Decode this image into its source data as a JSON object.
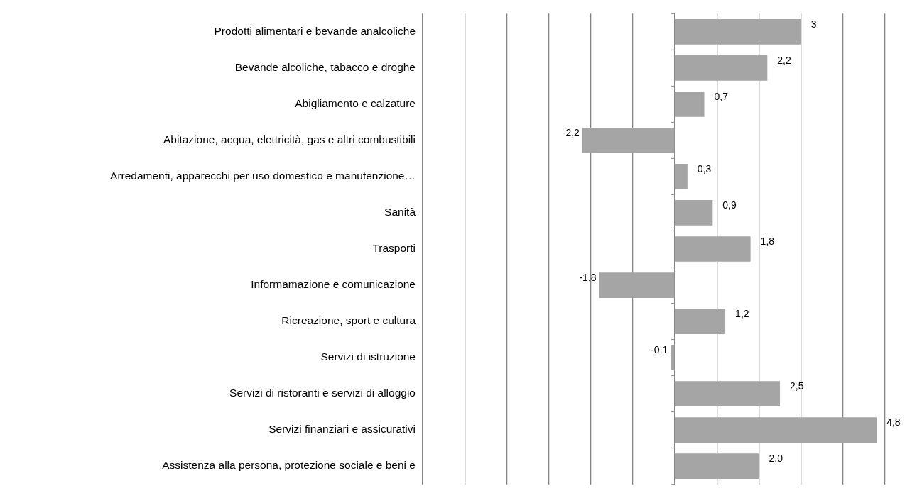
{
  "chart_data": {
    "type": "bar",
    "orientation": "horizontal",
    "categories": [
      "Prodotti alimentari e bevande analcoliche",
      "Bevande alcoliche, tabacco e droghe",
      "Abigliamento e calzature",
      "Abitazione, acqua, elettricità, gas e altri combustibili",
      "Arredamenti, apparecchi per uso domestico e manutenzione…",
      "Sanità",
      "Trasporti",
      "Informamazione e comunicazione",
      "Ricreazione, sport e cultura",
      "Servizi di istruzione",
      "Servizi di ristoranti e servizi di alloggio",
      "Servizi finanziari e assicurativi",
      "Assistenza alla persona, protezione sociale e beni e"
    ],
    "values": [
      3,
      2.2,
      0.7,
      -2.2,
      0.3,
      0.9,
      1.8,
      -1.8,
      1.2,
      -0.1,
      2.5,
      4.8,
      2.0
    ],
    "value_labels": [
      "3",
      "2,2",
      "0,7",
      "-2,2",
      "0,3",
      "0,9",
      "1,8",
      "-1,8",
      "1,2",
      "-0,1",
      "2,5",
      "4,8",
      "2,0"
    ],
    "color": "#a5a5a5",
    "xlim": [
      -6,
      5
    ],
    "xticks": [
      {
        "value": -6,
        "label": null
      },
      {
        "value": -5,
        "label": null
      },
      {
        "value": -4,
        "label": null
      },
      {
        "value": -3,
        "label": null
      },
      {
        "value": -2,
        "label": null
      },
      {
        "value": -1,
        "label": null
      },
      {
        "value": 0,
        "label": null
      },
      {
        "value": 1,
        "label": null
      },
      {
        "value": 2,
        "label": null
      },
      {
        "value": 3,
        "label": null
      },
      {
        "value": 4,
        "label": null
      },
      {
        "value": 5,
        "label": null
      }
    ],
    "grid": "x",
    "legend": false,
    "tick_labels": "y"
  }
}
